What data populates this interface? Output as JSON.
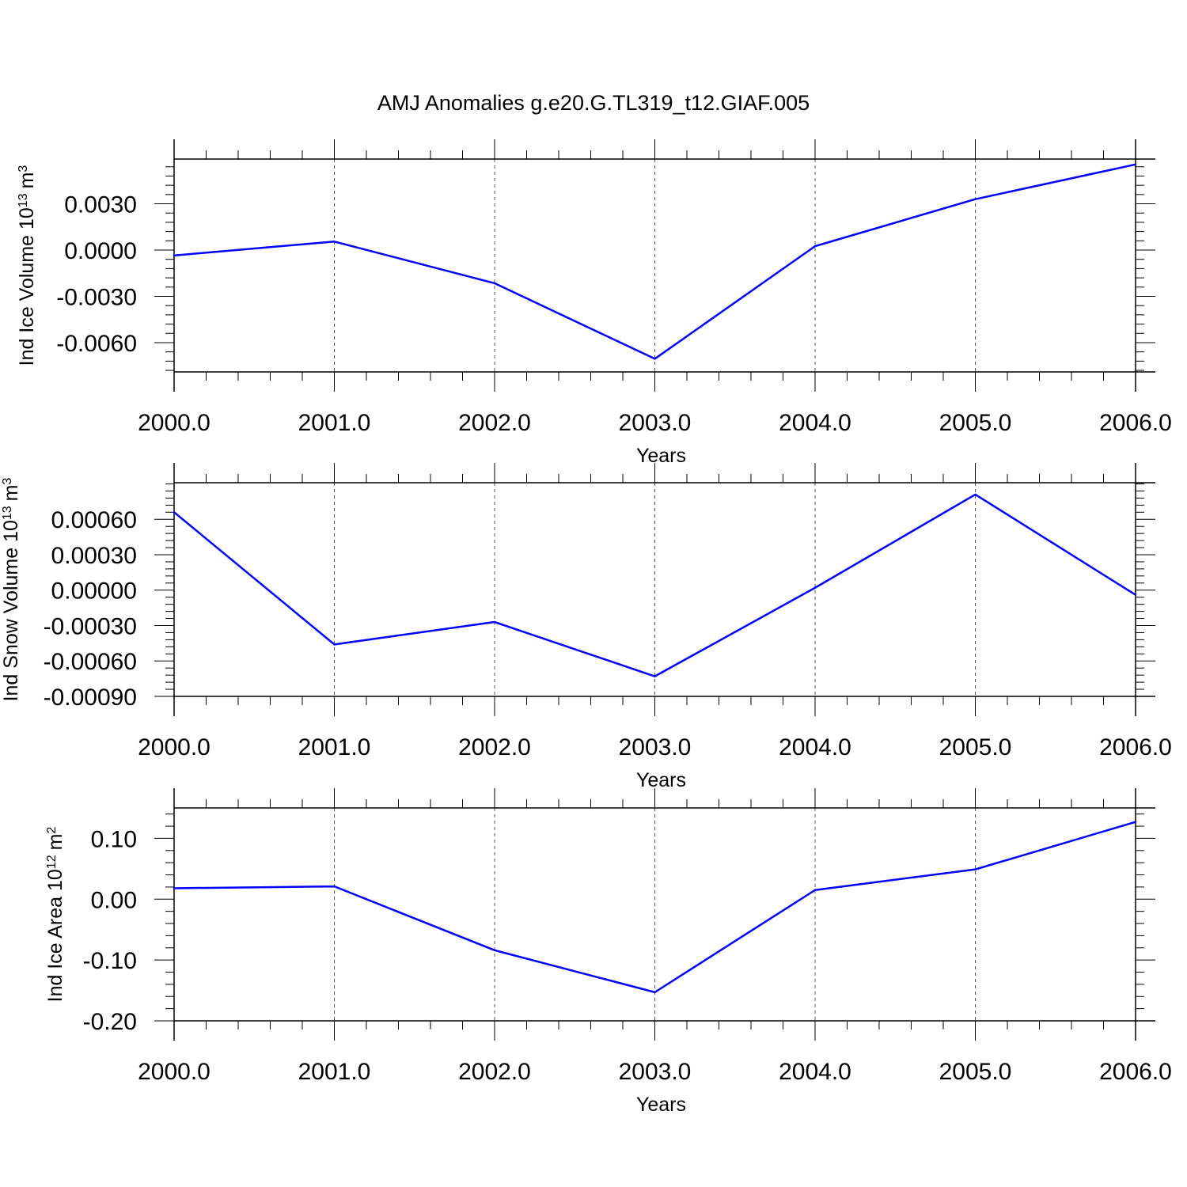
{
  "title": "AMJ Anomalies g.e20.G.TL319_t12.GIAF.005",
  "colors": {
    "series": "#0000ff",
    "axis": "#000000",
    "grid": "#555555"
  },
  "chart_data": [
    {
      "type": "line",
      "ylabel": "Ind Ice Volume 10",
      "ylabel_exponent": "13",
      "ylabel_unit": "m",
      "ylabel_unit_exponent": "3",
      "xlabel": "Years",
      "xlim": [
        2000,
        2006
      ],
      "ylim": [
        -0.0079,
        0.0059
      ],
      "xticks": [
        "2000.0",
        "2001.0",
        "2002.0",
        "2003.0",
        "2004.0",
        "2005.0",
        "2006.0"
      ],
      "yticks": [
        {
          "value": -0.006,
          "label": "-0.0060"
        },
        {
          "value": -0.003,
          "label": "-0.0030"
        },
        {
          "value": 0.0,
          "label": "0.0000"
        },
        {
          "value": 0.003,
          "label": "0.0030"
        }
      ],
      "grid": "vertical-dashed",
      "x": [
        2000,
        2001,
        2002,
        2003,
        2004,
        2005,
        2006
      ],
      "values": [
        -0.00035,
        0.00055,
        -0.00215,
        -0.00705,
        0.00025,
        0.0033,
        0.00555
      ]
    },
    {
      "type": "line",
      "ylabel": "Ind Snow Volume 10",
      "ylabel_exponent": "13",
      "ylabel_unit": "m",
      "ylabel_unit_exponent": "3",
      "xlabel": "Years",
      "xlim": [
        2000,
        2006
      ],
      "ylim": [
        -0.0009,
        0.00091
      ],
      "xticks": [
        "2000.0",
        "2001.0",
        "2002.0",
        "2003.0",
        "2004.0",
        "2005.0",
        "2006.0"
      ],
      "yticks": [
        {
          "value": -0.0009,
          "label": "-0.00090"
        },
        {
          "value": -0.0006,
          "label": "-0.00060"
        },
        {
          "value": -0.0003,
          "label": "-0.00030"
        },
        {
          "value": 0.0,
          "label": "0.00000"
        },
        {
          "value": 0.0003,
          "label": "0.00030"
        },
        {
          "value": 0.0006,
          "label": "0.00060"
        }
      ],
      "grid": "vertical-dashed",
      "x": [
        2000,
        2001,
        2002,
        2003,
        2004,
        2005,
        2006
      ],
      "values": [
        0.00066,
        -0.00046,
        -0.00027,
        -0.00073,
        2e-05,
        0.00081,
        -4e-05
      ]
    },
    {
      "type": "line",
      "ylabel": "Ind Ice Area 10",
      "ylabel_exponent": "12",
      "ylabel_unit": "m",
      "ylabel_unit_exponent": "2",
      "xlabel": "Years",
      "xlim": [
        2000,
        2006
      ],
      "ylim": [
        -0.2,
        0.15
      ],
      "xticks": [
        "2000.0",
        "2001.0",
        "2002.0",
        "2003.0",
        "2004.0",
        "2005.0",
        "2006.0"
      ],
      "yticks": [
        {
          "value": -0.2,
          "label": "-0.20"
        },
        {
          "value": -0.1,
          "label": "-0.10"
        },
        {
          "value": 0.0,
          "label": "0.00"
        },
        {
          "value": 0.1,
          "label": "0.10"
        }
      ],
      "grid": "vertical-dashed",
      "x": [
        2000,
        2001,
        2002,
        2003,
        2004,
        2005,
        2006
      ],
      "values": [
        0.018,
        0.021,
        -0.084,
        -0.153,
        0.015,
        0.049,
        0.127
      ]
    }
  ]
}
